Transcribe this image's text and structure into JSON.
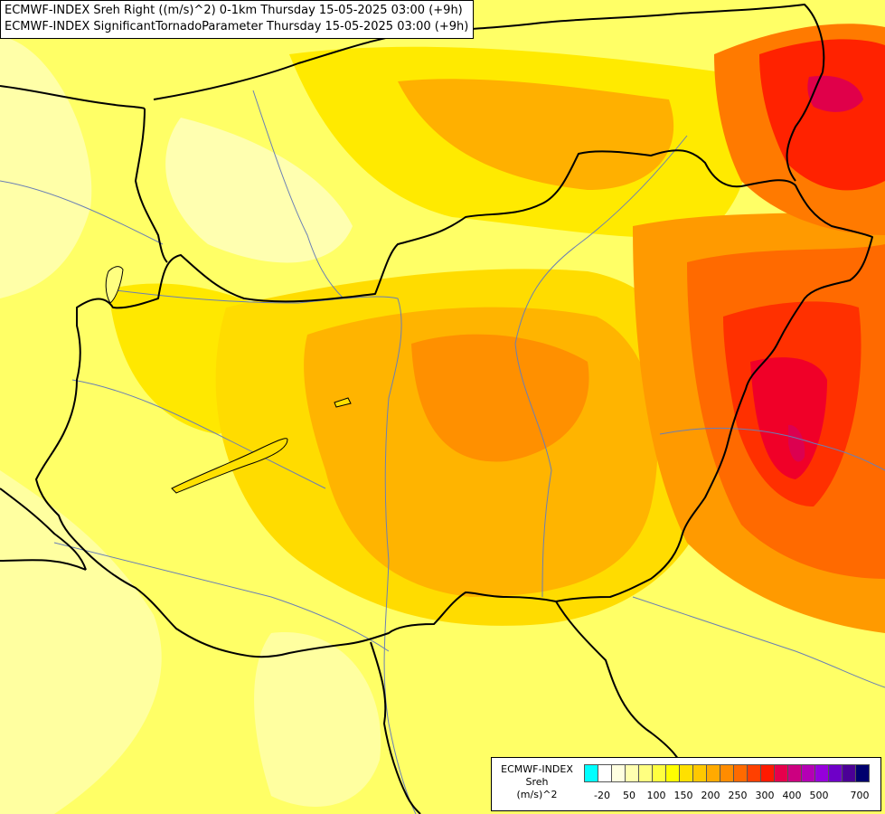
{
  "title": {
    "line1": "ECMWF-INDEX Sreh Right ((m/s)^2) 0-1km Thursday 15-05-2025 03:00 (+9h)",
    "line2": "ECMWF-INDEX SignificantTornadoParameter Thursday 15-05-2025 03:00 (+9h)"
  },
  "legend": {
    "line1": "ECMWF-INDEX",
    "line2": "Sreh",
    "line3": "(m/s)^2",
    "colors": [
      "#00ffff",
      "#ffffff",
      "#ffffe0",
      "#ffffb0",
      "#ffff80",
      "#ffff40",
      "#ffff00",
      "#ffe000",
      "#ffc800",
      "#ffaa00",
      "#ff8c00",
      "#ff6a00",
      "#ff4000",
      "#ff1a00",
      "#e6004c",
      "#cc0080",
      "#b400b4",
      "#9600dc",
      "#6e00c8",
      "#4b0096",
      "#00006e"
    ],
    "ticks": [
      "-20",
      "50",
      "100",
      "150",
      "200",
      "250",
      "300",
      "400",
      "500",
      "700"
    ]
  }
}
